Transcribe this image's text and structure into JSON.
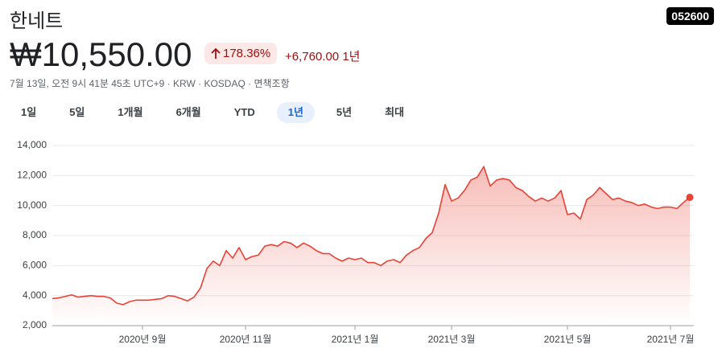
{
  "header": {
    "title": "한네트",
    "ticker": "052600",
    "price": "₩10,550.00",
    "change_percent": "178.36%",
    "change": "+6,760.00 1년",
    "meta": "7월 13일, 오전 9시 41분 45초 UTC+9 · KRW · KOSDAQ · 면책조항"
  },
  "range_tabs": [
    "1일",
    "5일",
    "1개월",
    "6개월",
    "YTD",
    "1년",
    "5년",
    "최대"
  ],
  "selected_tab": 5,
  "chart_data": {
    "type": "line",
    "color": "#e94235",
    "categories": [
      null,
      null,
      null,
      null,
      null,
      null,
      null,
      null,
      null,
      null,
      null,
      null,
      null,
      null,
      "2020년 9월",
      null,
      null,
      null,
      null,
      null,
      null,
      null,
      null,
      null,
      null,
      null,
      null,
      null,
      null,
      null,
      "2020년 11월",
      null,
      null,
      null,
      null,
      null,
      null,
      null,
      null,
      null,
      null,
      null,
      null,
      null,
      null,
      null,
      null,
      "2021년 1월",
      null,
      null,
      null,
      null,
      null,
      null,
      null,
      null,
      null,
      null,
      null,
      null,
      null,
      null,
      "2021년 3월",
      null,
      null,
      null,
      null,
      null,
      null,
      null,
      null,
      null,
      null,
      null,
      null,
      null,
      null,
      null,
      null,
      null,
      "2021년 5월",
      null,
      null,
      null,
      null,
      null,
      null,
      null,
      null,
      null,
      null,
      null,
      null,
      null,
      null,
      null,
      "2021년 7월",
      null,
      null,
      null
    ],
    "values": [
      3800,
      3850,
      3950,
      4050,
      3900,
      3950,
      4000,
      3950,
      3950,
      3850,
      3500,
      3400,
      3600,
      3700,
      3700,
      3700,
      3750,
      3800,
      4000,
      3950,
      3800,
      3650,
      3900,
      4500,
      5800,
      6300,
      6000,
      7000,
      6500,
      7200,
      6400,
      6600,
      6700,
      7300,
      7400,
      7300,
      7600,
      7500,
      7200,
      7500,
      7300,
      7000,
      6800,
      6800,
      6500,
      6300,
      6500,
      6400,
      6500,
      6200,
      6200,
      6000,
      6300,
      6400,
      6200,
      6700,
      7000,
      7200,
      7800,
      8200,
      9500,
      11400,
      10300,
      10500,
      11000,
      11700,
      11900,
      12600,
      11300,
      11700,
      11800,
      11700,
      11200,
      11000,
      10600,
      10300,
      10500,
      10300,
      10500,
      11000,
      9400,
      9500,
      9100,
      10400,
      10700,
      11200,
      10800,
      10400,
      10500,
      10300,
      10200,
      10000,
      10100,
      9900,
      9800,
      9900,
      9900,
      9800,
      10200,
      10550
    ],
    "ylim": [
      2000,
      14000
    ],
    "yticks": [
      {
        "value": 2000,
        "label": "2,000"
      },
      {
        "value": 4000,
        "label": "4,000"
      },
      {
        "value": 6000,
        "label": "6,000"
      },
      {
        "value": 8000,
        "label": "8,000"
      },
      {
        "value": 10000,
        "label": "10,000"
      },
      {
        "value": 12000,
        "label": "12,000"
      },
      {
        "value": 14000,
        "label": "14,000"
      }
    ],
    "grid": true
  }
}
